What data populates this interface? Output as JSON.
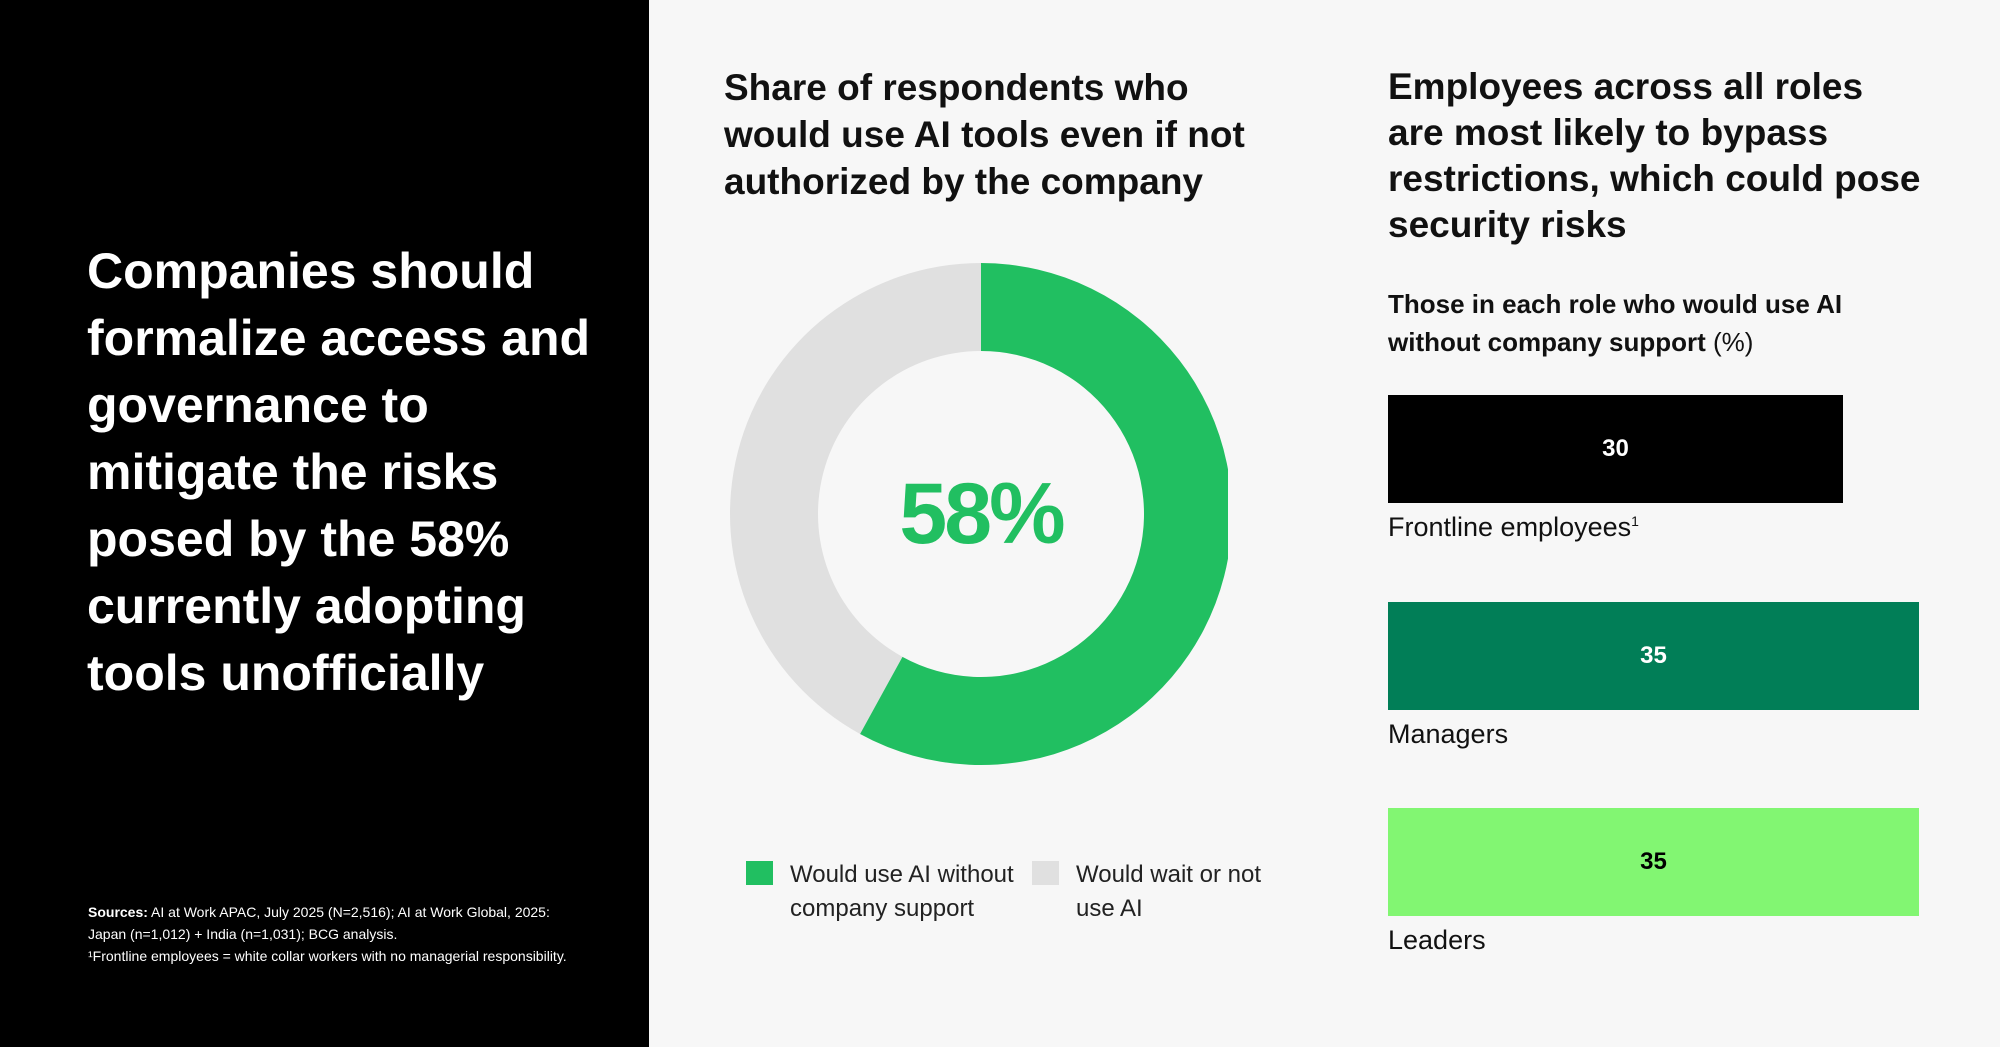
{
  "headline": "Companies should formalize access and governance to mitigate the risks posed by the 58% currently adopting tools unofficially",
  "sources": {
    "label": "Sources:",
    "text": " AI at Work APAC, July 2025 (N=2,516); AI at Work Global, 2025: Japan (n=1,012) + India (n=1,031); BCG analysis.",
    "footnote": "¹Frontline employees = white collar workers with no managerial responsibility."
  },
  "chart_data": [
    {
      "type": "pie",
      "title": "Share of respondents who would use AI tools even if not authorized by the company",
      "center_label": "58%",
      "slices": [
        {
          "label": "Would use AI without company support",
          "value": 58,
          "color": "#21bf61"
        },
        {
          "label": "Would wait or not use AI",
          "value": 42,
          "color": "#e0e0e0"
        }
      ]
    },
    {
      "type": "bar",
      "title": "Employees across all roles are most likely to bypass restrictions, which could pose security risks",
      "subtitle": "Those in each role who would use AI without company support",
      "unit": "(%)",
      "categories": [
        "Frontline employees",
        "Managers",
        "Leaders"
      ],
      "footnote_marks": [
        "1",
        "",
        ""
      ],
      "values": [
        30,
        35,
        35
      ],
      "colors": [
        "#000000",
        "#017e57",
        "#82f672"
      ],
      "value_label_colors": [
        "#ffffff",
        "#ffffff",
        "#000000"
      ],
      "xlim": [
        0,
        35
      ]
    }
  ]
}
